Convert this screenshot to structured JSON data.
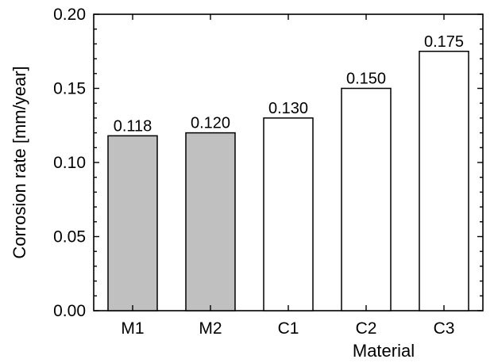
{
  "chart_data": {
    "type": "bar",
    "title": "",
    "xlabel": "Material",
    "ylabel": "Corrosion rate [mm/year]",
    "categories": [
      "M1",
      "M2",
      "C1",
      "C2",
      "C3"
    ],
    "values": [
      0.118,
      0.12,
      0.13,
      0.15,
      0.175
    ],
    "data_labels": [
      "0.118",
      "0.120",
      "0.130",
      "0.150",
      "0.175"
    ],
    "bar_colors": [
      "#c0c0c0",
      "#c0c0c0",
      "#ffffff",
      "#ffffff",
      "#ffffff"
    ],
    "ylim": [
      0,
      0.2
    ],
    "yticks": [
      0.0,
      0.05,
      0.1,
      0.15,
      0.2
    ],
    "ytick_labels": [
      "0.00",
      "0.05",
      "0.10",
      "0.15",
      "0.20"
    ],
    "grid": false,
    "legend": "none"
  }
}
